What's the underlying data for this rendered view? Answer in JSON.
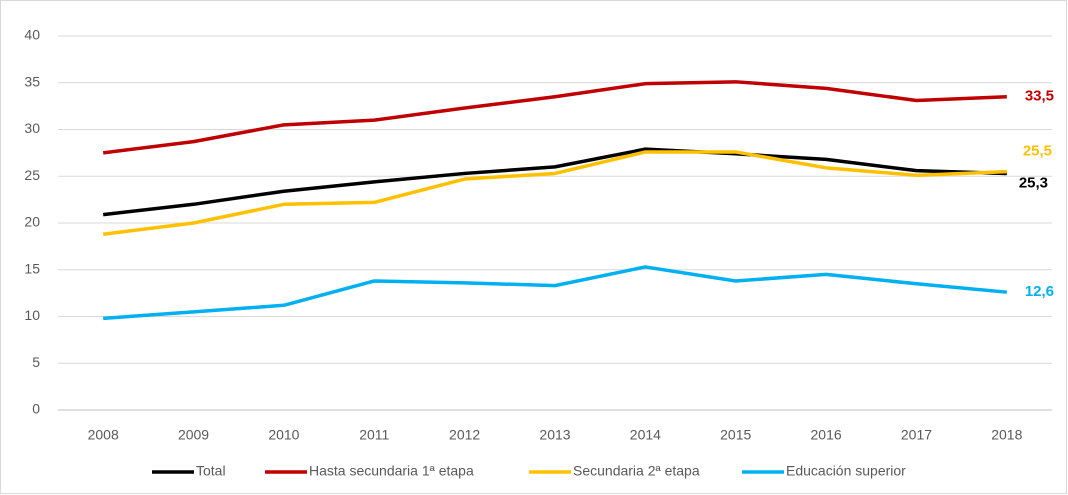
{
  "chart_data": {
    "type": "line",
    "x": [
      2008,
      2009,
      2010,
      2011,
      2012,
      2013,
      2014,
      2015,
      2016,
      2017,
      2018
    ],
    "ylim": [
      0,
      40
    ],
    "yticks": [
      0,
      5,
      10,
      15,
      20,
      25,
      30,
      35,
      40
    ],
    "grid": true,
    "legend": "bottom",
    "series": [
      {
        "name": "Total",
        "color": "#000000",
        "values": [
          20.9,
          22.0,
          23.4,
          24.4,
          25.3,
          26.0,
          27.9,
          27.4,
          26.8,
          25.6,
          25.3
        ],
        "value_labels": [
          null,
          null,
          null,
          null,
          null,
          null,
          null,
          null,
          null,
          null,
          "25,3"
        ]
      },
      {
        "name": "Hasta secundaria 1ª etapa",
        "color": "#c00000",
        "values": [
          27.5,
          28.7,
          30.5,
          31.0,
          32.3,
          33.5,
          34.9,
          35.1,
          34.4,
          33.1,
          33.5
        ],
        "value_labels": [
          null,
          null,
          null,
          null,
          null,
          null,
          null,
          null,
          null,
          null,
          "33,5"
        ]
      },
      {
        "name": "Secundaria 2ª etapa",
        "color": "#ffc000",
        "values": [
          18.8,
          20.0,
          22.0,
          22.2,
          24.7,
          25.3,
          27.6,
          27.6,
          25.9,
          25.1,
          25.5
        ],
        "value_labels": [
          null,
          null,
          null,
          null,
          null,
          null,
          null,
          null,
          null,
          null,
          "25,5"
        ]
      },
      {
        "name": "Educación superior",
        "color": "#00b0f0",
        "values": [
          9.8,
          10.5,
          11.2,
          13.8,
          13.6,
          13.3,
          15.3,
          13.8,
          14.5,
          13.5,
          12.6
        ],
        "value_labels": [
          null,
          null,
          null,
          null,
          null,
          null,
          null,
          null,
          null,
          null,
          "12,6"
        ]
      }
    ]
  }
}
